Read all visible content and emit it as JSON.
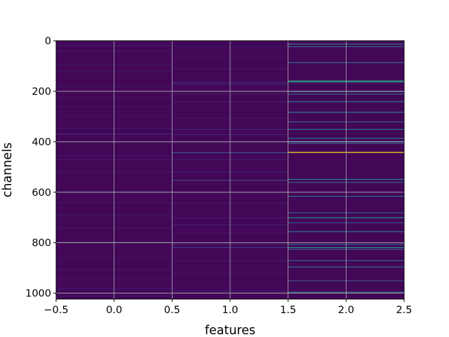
{
  "chart_data": {
    "type": "heatmap",
    "title": "",
    "xlabel": "features",
    "ylabel": "channels",
    "xlim": [
      -0.5,
      2.5
    ],
    "ylim": [
      1023.5,
      -0.5
    ],
    "y_inverted": true,
    "grid": true,
    "colormap": "viridis",
    "color_range": [
      0.0,
      1.0
    ],
    "rows": 1024,
    "columns": [
      0,
      1,
      2
    ],
    "x_ticks": [
      -0.5,
      0.0,
      0.5,
      1.0,
      1.5,
      2.0,
      2.5
    ],
    "x_tick_labels": [
      "−0.5",
      "0.0",
      "0.5",
      "1.0",
      "1.5",
      "2.0",
      "2.5"
    ],
    "y_ticks": [
      0,
      200,
      400,
      600,
      800,
      1000
    ],
    "y_tick_labels": [
      "0",
      "200",
      "400",
      "600",
      "800",
      "1000"
    ],
    "background_level": 0.02,
    "highlights": [
      {
        "column": 0,
        "channels": [
          18,
          40,
          95,
          120,
          180,
          225,
          260,
          300,
          345,
          368,
          400,
          455,
          470,
          520,
          598,
          640,
          688,
          705,
          740,
          798,
          860,
          905,
          945,
          980,
          1010
        ],
        "levels": [
          0.08,
          0.07,
          0.06,
          0.07,
          0.08,
          0.06,
          0.07,
          0.06,
          0.08,
          0.12,
          0.07,
          0.06,
          0.07,
          0.06,
          0.18,
          0.07,
          0.08,
          0.06,
          0.07,
          0.2,
          0.06,
          0.07,
          0.06,
          0.08,
          0.07
        ]
      },
      {
        "column": 1,
        "channels": [
          22,
          60,
          110,
          165,
          172,
          210,
          240,
          305,
          350,
          370,
          400,
          442,
          470,
          520,
          552,
          600,
          642,
          700,
          728,
          760,
          805,
          818,
          870,
          920,
          990
        ],
        "levels": [
          0.07,
          0.06,
          0.08,
          0.15,
          0.1,
          0.07,
          0.08,
          0.07,
          0.12,
          0.1,
          0.09,
          0.25,
          0.09,
          0.1,
          0.22,
          0.08,
          0.09,
          0.08,
          0.1,
          0.07,
          0.12,
          0.18,
          0.08,
          0.07,
          0.08
        ]
      },
      {
        "column": 2,
        "channels": [
          12,
          22,
          85,
          158,
          162,
          200,
          210,
          240,
          282,
          320,
          350,
          385,
          398,
          405,
          441,
          548,
          560,
          615,
          680,
          700,
          720,
          755,
          805,
          818,
          825,
          870,
          895,
          950,
          995
        ],
        "levels": [
          0.4,
          0.3,
          0.35,
          0.6,
          0.45,
          0.35,
          0.3,
          0.4,
          0.45,
          0.3,
          0.4,
          0.35,
          0.45,
          0.3,
          1.0,
          0.45,
          0.3,
          0.35,
          0.3,
          0.5,
          0.25,
          0.4,
          0.35,
          0.5,
          0.3,
          0.3,
          0.35,
          0.25,
          0.4
        ]
      }
    ]
  }
}
